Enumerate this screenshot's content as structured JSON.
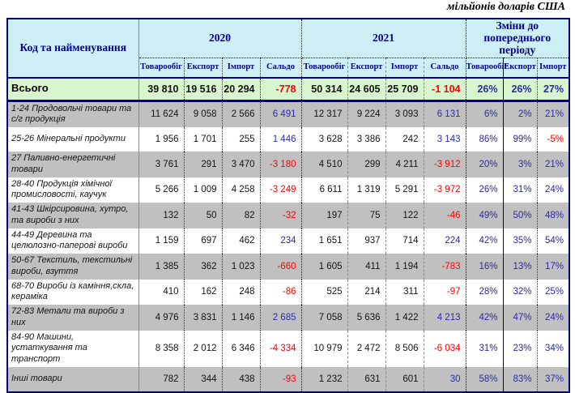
{
  "title": "мільйонів доларів США",
  "colors": {
    "border_navy": "#000080",
    "header_bg": "#cdf0f6",
    "total_row_bg": "#d7f6cd",
    "stripe_gray": "#c0c0c0",
    "negative_text": "#ff0000",
    "positive_saldo_text": "#2b2bb0",
    "header_text": "#00008b"
  },
  "chart_data": {
    "type": "table",
    "title": "мільйонів доларів США",
    "corner_header": "Код та найменування",
    "column_groups": [
      {
        "label": "2020",
        "columns": [
          "Товарообіг",
          "Експорт",
          "Імпорт",
          "Сальдо"
        ]
      },
      {
        "label": "2021",
        "columns": [
          "Товарообіг",
          "Експорт",
          "Імпорт",
          "Сальдо"
        ]
      },
      {
        "label": "Зміни до попереднього періоду",
        "columns": [
          "Товарообіг",
          "Експорт",
          "Імпорт"
        ]
      }
    ],
    "total_row": {
      "label": "Всього",
      "values": [
        "39 810",
        "19 516",
        "20 294",
        "-778",
        "50 314",
        "24 605",
        "25 709",
        "-1 104",
        "26%",
        "26%",
        "27%"
      ]
    },
    "rows": [
      {
        "label": "1-24 Продовольчі товари та с/г продукція",
        "values": [
          "11 624",
          "9 058",
          "2 566",
          "6 491",
          "12 317",
          "9 224",
          "3 093",
          "6 131",
          "6%",
          "2%",
          "21%"
        ]
      },
      {
        "label": "25-26 Мінеральні продукти",
        "values": [
          "1 956",
          "1 701",
          "255",
          "1 446",
          "3 628",
          "3 386",
          "242",
          "3 143",
          "86%",
          "99%",
          "-5%"
        ]
      },
      {
        "label": "27 Паливно-енергетичні товари",
        "values": [
          "3 761",
          "291",
          "3 470",
          "-3 180",
          "4 510",
          "299",
          "4 211",
          "-3 912",
          "20%",
          "3%",
          "21%"
        ]
      },
      {
        "label": "28-40 Продукція хімічної промисловості, каучук",
        "values": [
          "5 266",
          "1 009",
          "4 258",
          "-3 249",
          "6 611",
          "1 319",
          "5 291",
          "-3 972",
          "26%",
          "31%",
          "24%"
        ]
      },
      {
        "label": "41-43 Шкірсировина, хутро, та вироби з них",
        "values": [
          "132",
          "50",
          "82",
          "-32",
          "197",
          "75",
          "122",
          "-46",
          "49%",
          "50%",
          "48%"
        ]
      },
      {
        "label": "44-49 Деревина та целюлозно-паперові вироби",
        "values": [
          "1 159",
          "697",
          "462",
          "234",
          "1 651",
          "937",
          "714",
          "224",
          "42%",
          "35%",
          "54%"
        ]
      },
      {
        "label": "50-67 Текстиль, текстильні вироби, взуття",
        "values": [
          "1 385",
          "362",
          "1 023",
          "-660",
          "1 605",
          "411",
          "1 194",
          "-783",
          "16%",
          "13%",
          "17%"
        ]
      },
      {
        "label": "68-70 Вироби із каміння,скла, кераміка",
        "values": [
          "410",
          "162",
          "248",
          "-86",
          "525",
          "214",
          "311",
          "-97",
          "28%",
          "32%",
          "25%"
        ]
      },
      {
        "label": "72-83 Метали та вироби з них",
        "values": [
          "4 976",
          "3 831",
          "1 146",
          "2 685",
          "7 058",
          "5 636",
          "1 422",
          "4 213",
          "42%",
          "47%",
          "24%"
        ]
      },
      {
        "label": "84-90 Машини, устаткування та транспорт",
        "values": [
          "8 358",
          "2 012",
          "6 346",
          "-4 334",
          "10 979",
          "2 472",
          "8 506",
          "-6 034",
          "31%",
          "23%",
          "34%"
        ]
      },
      {
        "label": "Інші товари",
        "values": [
          "782",
          "344",
          "438",
          "-93",
          "1 232",
          "631",
          "601",
          "30",
          "58%",
          "83%",
          "37%"
        ]
      }
    ]
  }
}
